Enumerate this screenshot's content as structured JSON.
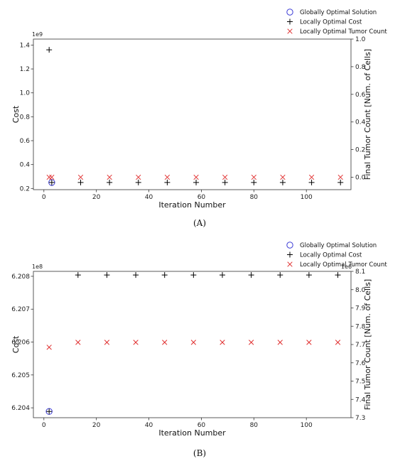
{
  "chart_data": [
    {
      "type": "scatter",
      "caption": "(A)",
      "xlabel": "Iteration Number",
      "ylabel": "Cost",
      "y2label": "Final Tumor Count [Num. of Cells]",
      "xlim": [
        -4,
        117
      ],
      "ylim": [
        0.19,
        1.45
      ],
      "y_exponent": "1e9",
      "y2lim": [
        -0.09,
        1.0
      ],
      "x_ticks": [
        0,
        20,
        40,
        60,
        80,
        100
      ],
      "y_ticks": [
        0.2,
        0.4,
        0.6,
        0.8,
        1.0,
        1.2,
        1.4
      ],
      "y_tick_labels": [
        "0.2",
        "0.4",
        "0.6",
        "0.8",
        "1.0",
        "1.2",
        "1.4"
      ],
      "y2_ticks": [
        0.0,
        0.2,
        0.4,
        0.6,
        0.8,
        1.0
      ],
      "y2_tick_labels": [
        "0.0",
        "0.2",
        "0.4",
        "0.6",
        "0.8",
        "1.0"
      ],
      "legend": {
        "placement": "above-right",
        "entries": [
          "Globally Optimal Solution",
          "Locally Optimal Cost",
          "Locally Optimal Tumor Count"
        ]
      },
      "series": [
        {
          "name": "Globally Optimal Solution",
          "marker": "circle",
          "axis": "left",
          "color": "#3b3bd6",
          "x": [
            3
          ],
          "y": [
            0.25
          ]
        },
        {
          "name": "Locally Optimal Cost",
          "marker": "plus",
          "axis": "left",
          "color": "#000000",
          "x": [
            2,
            3,
            14,
            25,
            36,
            47,
            58,
            69,
            80,
            91,
            102,
            113
          ],
          "y": [
            1.36,
            0.25,
            0.25,
            0.25,
            0.25,
            0.25,
            0.25,
            0.25,
            0.25,
            0.25,
            0.25,
            0.25
          ]
        },
        {
          "name": "Locally Optimal Tumor Count",
          "marker": "x",
          "axis": "right",
          "color": "#e03030",
          "x": [
            2,
            3,
            14,
            25,
            36,
            47,
            58,
            69,
            80,
            91,
            102,
            113
          ],
          "y": [
            0,
            0,
            0,
            0,
            0,
            0,
            0,
            0,
            0,
            0,
            0,
            0
          ]
        }
      ]
    },
    {
      "type": "scatter",
      "caption": "(B)",
      "xlabel": "Iteration Number",
      "ylabel": "Cost",
      "y2label": "Final Tumor Count [Num. of Cells]",
      "xlim": [
        -4,
        117
      ],
      "ylim": [
        6.2037,
        6.20815
      ],
      "y_exponent": "1e8",
      "y2lim": [
        7.3,
        8.1
      ],
      "y2_exponent": "1e6",
      "x_ticks": [
        0,
        20,
        40,
        60,
        80,
        100
      ],
      "y_ticks": [
        6.204,
        6.205,
        6.206,
        6.207,
        6.208
      ],
      "y_tick_labels": [
        "6.204",
        "6.205",
        "6.206",
        "6.207",
        "6.208"
      ],
      "y2_ticks": [
        7.3,
        7.4,
        7.5,
        7.6,
        7.7,
        7.8,
        7.9,
        8.0,
        8.1
      ],
      "y2_tick_labels": [
        "7.3",
        "7.4",
        "7.5",
        "7.6",
        "7.7",
        "7.8",
        "7.9",
        "8.0",
        "8.1"
      ],
      "legend": {
        "placement": "above-right",
        "entries": [
          "Globally Optimal Solution",
          "Locally Optimal Cost",
          "Locally Optimal Tumor Count"
        ]
      },
      "series": [
        {
          "name": "Globally Optimal Solution",
          "marker": "circle",
          "axis": "left",
          "color": "#3b3bd6",
          "x": [
            2
          ],
          "y": [
            6.20389
          ]
        },
        {
          "name": "Locally Optimal Cost",
          "marker": "plus",
          "axis": "left",
          "color": "#000000",
          "x": [
            2,
            13,
            24,
            35,
            46,
            57,
            68,
            79,
            90,
            101,
            112
          ],
          "y": [
            6.20389,
            6.20804,
            6.20804,
            6.20804,
            6.20804,
            6.20804,
            6.20804,
            6.20804,
            6.20804,
            6.20804,
            6.20804
          ]
        },
        {
          "name": "Locally Optimal Tumor Count",
          "marker": "x",
          "axis": "right",
          "color": "#e03030",
          "x": [
            2,
            13,
            24,
            35,
            46,
            57,
            68,
            79,
            90,
            101,
            112
          ],
          "y": [
            7.685,
            7.712,
            7.712,
            7.712,
            7.712,
            7.712,
            7.712,
            7.712,
            7.712,
            7.712,
            7.712
          ]
        }
      ]
    }
  ]
}
